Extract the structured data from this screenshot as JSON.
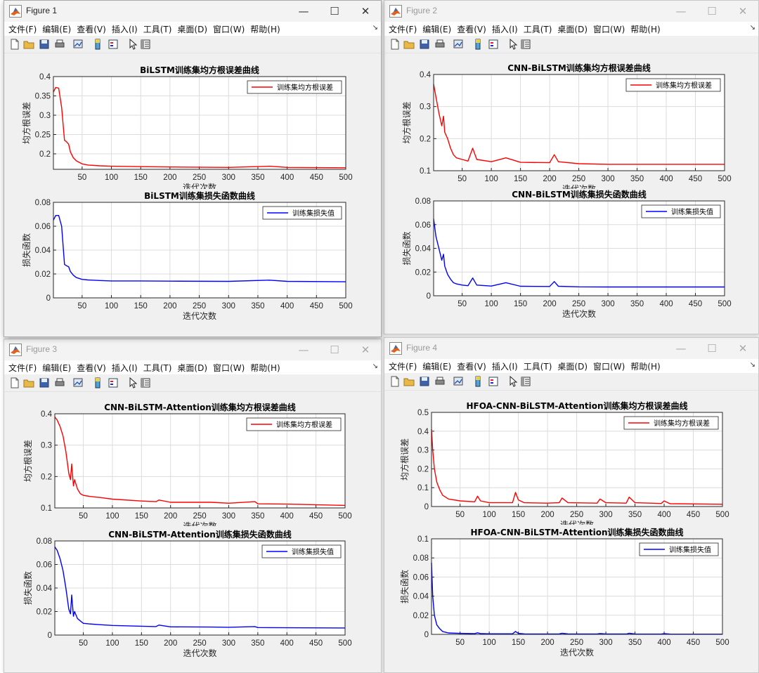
{
  "menu": [
    "文件(F)",
    "编辑(E)",
    "查看(V)",
    "插入(I)",
    "工具(T)",
    "桌面(D)",
    "窗口(W)",
    "帮助(H)"
  ],
  "toolbar_icons": [
    "new-file-icon",
    "open-folder-icon",
    "save-icon",
    "print-icon",
    "link-plot-icon",
    "colorbar-icon",
    "legend-icon",
    "pointer-icon",
    "property-inspector-icon"
  ],
  "colors": {
    "rmse": "#ff0000",
    "loss": "#0000ff"
  },
  "windows": [
    {
      "title": "Figure 1",
      "active": true,
      "subplots": [
        {
          "title": "BiLSTM训练集均方根误差曲线",
          "xlabel": "迭代次数",
          "ylabel": "均方根误差",
          "legend": "训练集均方根误差",
          "yticks": [
            "0.2",
            "0.25",
            "0.3",
            "0.35",
            "0.4"
          ],
          "xticks": [
            "50",
            "100",
            "150",
            "200",
            "250",
            "300",
            "350",
            "400",
            "450",
            "500"
          ]
        },
        {
          "title": "BiLSTM训练集损失函数曲线",
          "xlabel": "迭代次数",
          "ylabel": "损失函数",
          "legend": "训练集损失值",
          "yticks": [
            "0",
            "0.02",
            "0.04",
            "0.06",
            "0.08"
          ],
          "xticks": [
            "50",
            "100",
            "150",
            "200",
            "250",
            "300",
            "350",
            "400",
            "450",
            "500"
          ]
        }
      ]
    },
    {
      "title": "Figure 2",
      "active": false,
      "subplots": [
        {
          "title": "CNN-BiLSTM训练集均方根误差曲线",
          "xlabel": "迭代次数",
          "ylabel": "均方根误差",
          "legend": "训练集均方根误差",
          "yticks": [
            "0.1",
            "0.2",
            "0.3",
            "0.4"
          ],
          "xticks": [
            "50",
            "100",
            "150",
            "200",
            "250",
            "300",
            "350",
            "400",
            "450",
            "500"
          ]
        },
        {
          "title": "CNN-BiLSTM训练集损失函数曲线",
          "xlabel": "迭代次数",
          "ylabel": "损失函数",
          "legend": "训练集损失值",
          "yticks": [
            "0",
            "0.02",
            "0.04",
            "0.06",
            "0.08"
          ],
          "xticks": [
            "50",
            "100",
            "150",
            "200",
            "250",
            "300",
            "350",
            "400",
            "450",
            "500"
          ]
        }
      ]
    },
    {
      "title": "Figure 3",
      "active": false,
      "subplots": [
        {
          "title": "CNN-BiLSTM-Attention训练集均方根误差曲线",
          "xlabel": "迭代次数",
          "ylabel": "均方根误差",
          "legend": "训练集均方根误差",
          "yticks": [
            "0.1",
            "0.2",
            "0.3",
            "0.4"
          ],
          "xticks": [
            "50",
            "100",
            "150",
            "200",
            "250",
            "300",
            "350",
            "400",
            "450",
            "500"
          ]
        },
        {
          "title": "CNN-BiLSTM-Attention训练集损失函数曲线",
          "xlabel": "迭代次数",
          "ylabel": "损失函数",
          "legend": "训练集损失值",
          "yticks": [
            "0",
            "0.02",
            "0.04",
            "0.06",
            "0.08"
          ],
          "xticks": [
            "50",
            "100",
            "150",
            "200",
            "250",
            "300",
            "350",
            "400",
            "450",
            "500"
          ]
        }
      ]
    },
    {
      "title": "Figure 4",
      "active": false,
      "subplots": [
        {
          "title": "HFOA-CNN-BiLSTM-Attention训练集均方根误差曲线",
          "xlabel": "迭代次数",
          "ylabel": "均方根误差",
          "legend": "训练集均方根误差",
          "yticks": [
            "0",
            "0.1",
            "0.2",
            "0.3",
            "0.4",
            "0.5"
          ],
          "xticks": [
            "50",
            "100",
            "150",
            "200",
            "250",
            "300",
            "350",
            "400",
            "450",
            "500"
          ]
        },
        {
          "title": "HFOA-CNN-BiLSTM-Attention训练集损失函数曲线",
          "xlabel": "迭代次数",
          "ylabel": "损失函数",
          "legend": "训练集损失值",
          "yticks": [
            "0",
            "0.02",
            "0.04",
            "0.06",
            "0.08",
            "0.1"
          ],
          "xticks": [
            "50",
            "100",
            "150",
            "200",
            "250",
            "300",
            "350",
            "400",
            "450",
            "500"
          ]
        }
      ]
    }
  ],
  "chart_data": [
    {
      "figure": "Figure 1",
      "type": "line",
      "title": "BiLSTM训练集均方根误差曲线",
      "xlabel": "迭代次数",
      "ylabel": "均方根误差",
      "xlim": [
        1,
        500
      ],
      "ylim": [
        0.16,
        0.4
      ],
      "grid": true,
      "legend_position": "top-right",
      "series": [
        {
          "name": "训练集均方根误差",
          "color": "#ff0000",
          "x": [
            1,
            5,
            10,
            15,
            20,
            23,
            27,
            30,
            35,
            40,
            50,
            60,
            80,
            100,
            150,
            200,
            300,
            370,
            400,
            500
          ],
          "y": [
            0.36,
            0.372,
            0.37,
            0.32,
            0.235,
            0.232,
            0.225,
            0.205,
            0.19,
            0.182,
            0.174,
            0.171,
            0.169,
            0.168,
            0.167,
            0.166,
            0.165,
            0.168,
            0.165,
            0.164
          ]
        }
      ]
    },
    {
      "figure": "Figure 1",
      "type": "line",
      "title": "BiLSTM训练集损失函数曲线",
      "xlabel": "迭代次数",
      "ylabel": "损失函数",
      "xlim": [
        1,
        500
      ],
      "ylim": [
        0,
        0.08
      ],
      "grid": true,
      "legend_position": "top-right",
      "series": [
        {
          "name": "训练集损失值",
          "color": "#0000ff",
          "x": [
            1,
            5,
            10,
            15,
            20,
            23,
            27,
            30,
            35,
            40,
            50,
            60,
            80,
            100,
            150,
            200,
            300,
            370,
            400,
            500
          ],
          "y": [
            0.065,
            0.069,
            0.069,
            0.06,
            0.028,
            0.027,
            0.026,
            0.022,
            0.019,
            0.017,
            0.0155,
            0.015,
            0.0145,
            0.0142,
            0.0142,
            0.014,
            0.0138,
            0.0148,
            0.0138,
            0.0135
          ]
        }
      ]
    },
    {
      "figure": "Figure 2",
      "type": "line",
      "title": "CNN-BiLSTM训练集均方根误差曲线",
      "xlabel": "迭代次数",
      "ylabel": "均方根误差",
      "xlim": [
        1,
        500
      ],
      "ylim": [
        0.1,
        0.4
      ],
      "grid": true,
      "legend_position": "top-right",
      "series": [
        {
          "name": "训练集均方根误差",
          "color": "#ff0000",
          "x": [
            1,
            5,
            10,
            15,
            18,
            20,
            25,
            30,
            35,
            40,
            50,
            60,
            68,
            75,
            100,
            125,
            150,
            200,
            208,
            215,
            250,
            300,
            500
          ],
          "y": [
            0.37,
            0.33,
            0.28,
            0.24,
            0.27,
            0.22,
            0.2,
            0.17,
            0.15,
            0.14,
            0.135,
            0.13,
            0.17,
            0.135,
            0.128,
            0.14,
            0.126,
            0.125,
            0.15,
            0.128,
            0.122,
            0.12,
            0.12
          ]
        }
      ]
    },
    {
      "figure": "Figure 2",
      "type": "line",
      "title": "CNN-BiLSTM训练集损失函数曲线",
      "xlabel": "迭代次数",
      "ylabel": "损失函数",
      "xlim": [
        1,
        500
      ],
      "ylim": [
        0,
        0.08
      ],
      "grid": true,
      "legend_position": "top-right",
      "series": [
        {
          "name": "训练集损失值",
          "color": "#0000ff",
          "x": [
            1,
            5,
            10,
            15,
            18,
            20,
            25,
            30,
            35,
            40,
            50,
            60,
            68,
            75,
            100,
            125,
            150,
            200,
            208,
            215,
            250,
            300,
            500
          ],
          "y": [
            0.065,
            0.05,
            0.04,
            0.03,
            0.035,
            0.025,
            0.018,
            0.014,
            0.011,
            0.01,
            0.009,
            0.0085,
            0.015,
            0.009,
            0.0082,
            0.011,
            0.008,
            0.0078,
            0.012,
            0.008,
            0.0075,
            0.0074,
            0.0074
          ]
        }
      ]
    },
    {
      "figure": "Figure 3",
      "type": "line",
      "title": "CNN-BiLSTM-Attention训练集均方根误差曲线",
      "xlabel": "迭代次数",
      "ylabel": "均方根误差",
      "xlim": [
        1,
        500
      ],
      "ylim": [
        0.1,
        0.4
      ],
      "grid": true,
      "legend_position": "top-right",
      "series": [
        {
          "name": "训练集均方根误差",
          "color": "#ff0000",
          "x": [
            1,
            5,
            10,
            15,
            20,
            25,
            28,
            30,
            33,
            35,
            40,
            45,
            50,
            60,
            80,
            100,
            150,
            175,
            180,
            200,
            270,
            300,
            345,
            350,
            400,
            500
          ],
          "y": [
            0.39,
            0.38,
            0.36,
            0.33,
            0.28,
            0.21,
            0.19,
            0.24,
            0.17,
            0.19,
            0.16,
            0.145,
            0.14,
            0.137,
            0.133,
            0.128,
            0.122,
            0.12,
            0.125,
            0.118,
            0.118,
            0.115,
            0.12,
            0.113,
            0.112,
            0.108
          ]
        }
      ]
    },
    {
      "figure": "Figure 3",
      "type": "line",
      "title": "CNN-BiLSTM-Attention训练集损失函数曲线",
      "xlabel": "迭代次数",
      "ylabel": "损失函数",
      "xlim": [
        1,
        500
      ],
      "ylim": [
        0,
        0.08
      ],
      "grid": true,
      "legend_position": "top-right",
      "series": [
        {
          "name": "训练集损失值",
          "color": "#0000ff",
          "x": [
            1,
            5,
            10,
            15,
            20,
            25,
            28,
            30,
            33,
            35,
            40,
            45,
            50,
            60,
            80,
            100,
            150,
            175,
            180,
            200,
            270,
            300,
            345,
            350,
            400,
            500
          ],
          "y": [
            0.075,
            0.072,
            0.065,
            0.055,
            0.04,
            0.022,
            0.018,
            0.034,
            0.016,
            0.02,
            0.014,
            0.012,
            0.01,
            0.0095,
            0.0088,
            0.0082,
            0.0075,
            0.0072,
            0.0085,
            0.007,
            0.0068,
            0.0066,
            0.0072,
            0.0064,
            0.0062,
            0.006
          ]
        }
      ]
    },
    {
      "figure": "Figure 4",
      "type": "line",
      "title": "HFOA-CNN-BiLSTM-Attention训练集均方根误差曲线",
      "xlabel": "迭代次数",
      "ylabel": "均方根误差",
      "xlim": [
        1,
        500
      ],
      "ylim": [
        0,
        0.5
      ],
      "grid": true,
      "legend_position": "top-right",
      "series": [
        {
          "name": "训练集均方根误差",
          "color": "#ff0000",
          "x": [
            1,
            3,
            6,
            10,
            15,
            20,
            30,
            50,
            75,
            80,
            85,
            100,
            140,
            145,
            150,
            160,
            200,
            220,
            225,
            235,
            285,
            290,
            300,
            335,
            340,
            350,
            395,
            400,
            410,
            500
          ],
          "y": [
            0.41,
            0.3,
            0.2,
            0.13,
            0.09,
            0.06,
            0.04,
            0.03,
            0.025,
            0.055,
            0.03,
            0.02,
            0.02,
            0.075,
            0.035,
            0.02,
            0.018,
            0.02,
            0.045,
            0.02,
            0.018,
            0.04,
            0.02,
            0.018,
            0.05,
            0.02,
            0.016,
            0.03,
            0.015,
            0.012
          ]
        }
      ]
    },
    {
      "figure": "Figure 4",
      "type": "line",
      "title": "HFOA-CNN-BiLSTM-Attention训练集损失函数曲线",
      "xlabel": "迭代次数",
      "ylabel": "损失函数",
      "xlim": [
        1,
        500
      ],
      "ylim": [
        0,
        0.1
      ],
      "grid": true,
      "legend_position": "top-right",
      "series": [
        {
          "name": "训练集损失值",
          "color": "#0000ff",
          "x": [
            1,
            3,
            6,
            10,
            15,
            20,
            30,
            50,
            75,
            80,
            85,
            100,
            140,
            145,
            150,
            160,
            200,
            220,
            225,
            235,
            285,
            290,
            300,
            335,
            340,
            350,
            395,
            400,
            410,
            500
          ],
          "y": [
            0.075,
            0.04,
            0.02,
            0.01,
            0.006,
            0.003,
            0.0015,
            0.001,
            0.0008,
            0.0016,
            0.0009,
            0.0006,
            0.0006,
            0.003,
            0.001,
            0.0005,
            0.0004,
            0.0005,
            0.0012,
            0.0005,
            0.0004,
            0.0009,
            0.0004,
            0.0004,
            0.0012,
            0.0004,
            0.0003,
            0.0007,
            0.0003,
            0.0002
          ]
        }
      ]
    }
  ]
}
